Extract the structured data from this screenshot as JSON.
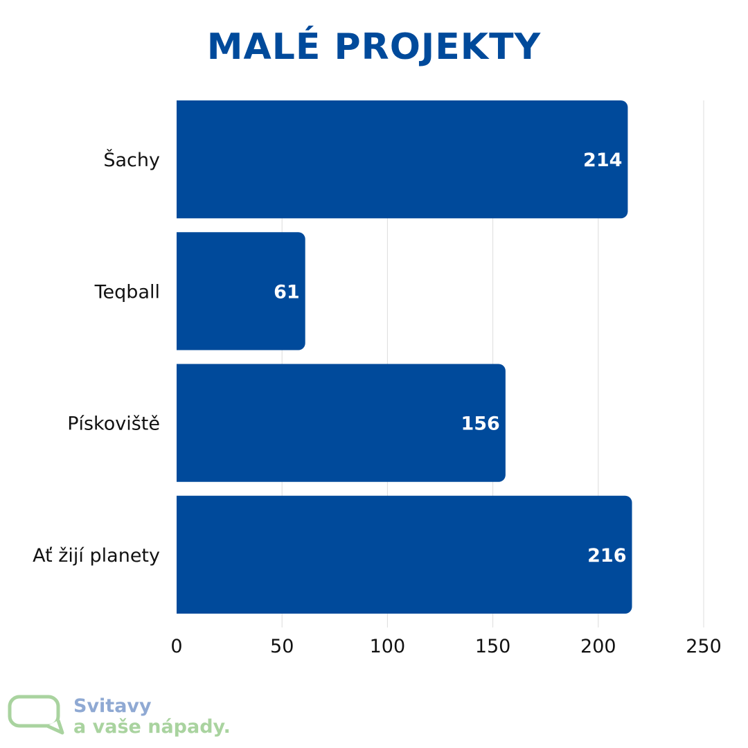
{
  "colors": {
    "bar": "#004a9b",
    "title": "#004a9b",
    "grid": "#dcdcdc",
    "logo_blue": "#8fa9d3",
    "logo_green": "#a9d39f"
  },
  "chart_data": {
    "type": "bar",
    "orientation": "horizontal",
    "title": "MALÉ PROJEKTY",
    "xlabel": "",
    "ylabel": "",
    "categories": [
      "Šachy",
      "Teqball",
      "Pískoviště",
      "Ať žijí planety"
    ],
    "values": [
      214,
      61,
      156,
      216
    ],
    "xlim": [
      0,
      250
    ],
    "xticks": [
      0,
      50,
      100,
      150,
      200,
      250
    ],
    "grid": true,
    "data_labels": true
  },
  "logo": {
    "icon": "speech-bubble-icon",
    "line1": "Svitavy",
    "line2": "a vaše nápady."
  }
}
